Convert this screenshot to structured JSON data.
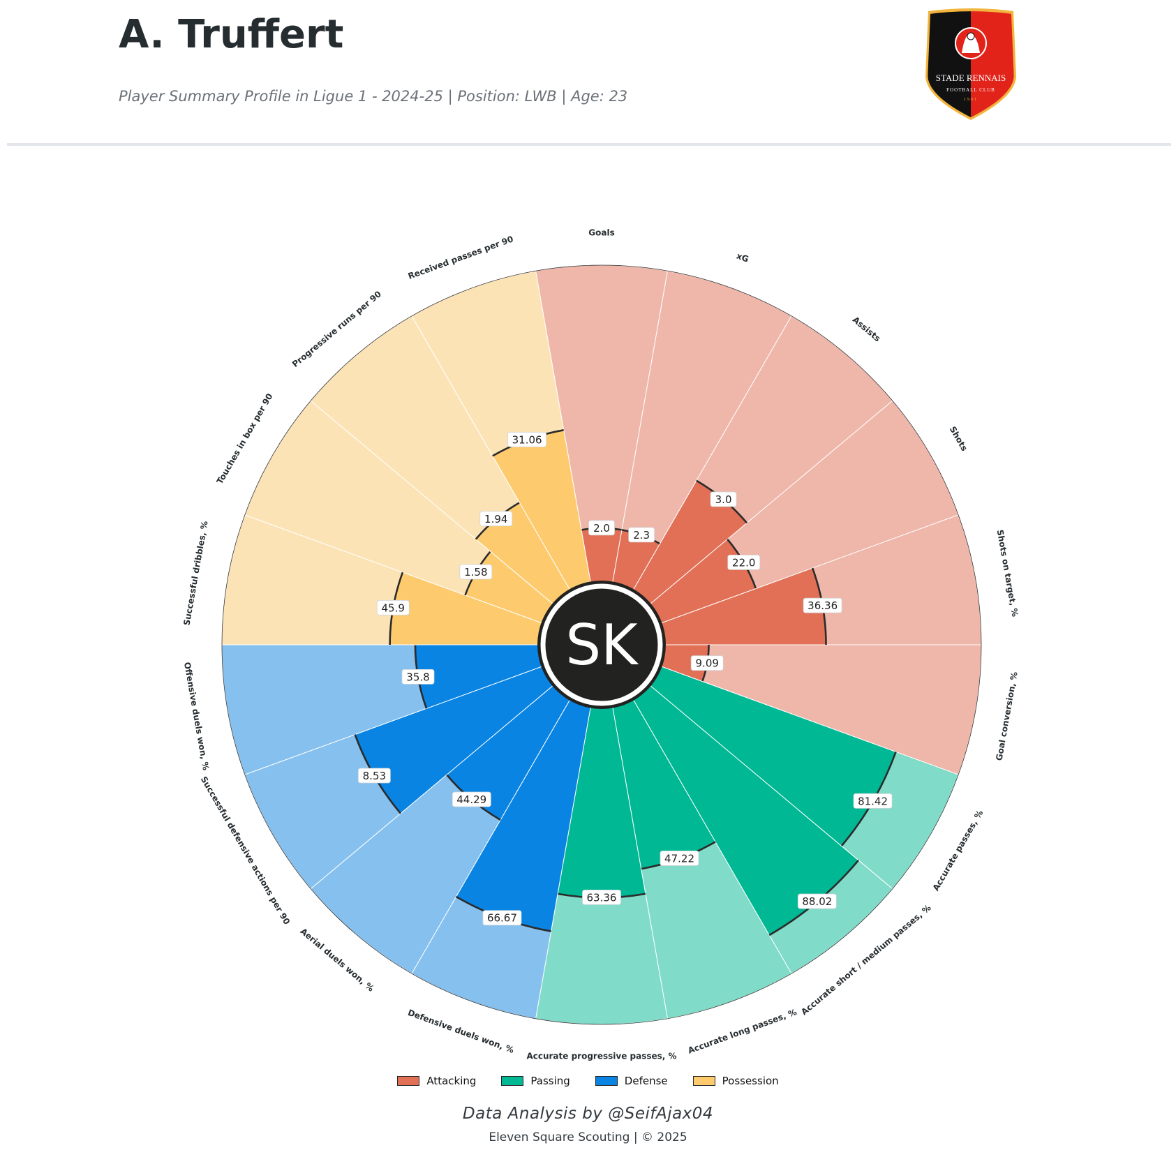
{
  "header": {
    "title": "A. Truffert",
    "subtitle": "Player Summary Profile in Ligue 1 - 2024-25 | Position: LWB | Age: 23"
  },
  "logo": {
    "name": "STADE RENNAIS",
    "sub": "FOOTBALL CLUB",
    "year": "1901",
    "colors": {
      "left": "#111111",
      "right": "#e2231a",
      "border": "#f2b43c"
    }
  },
  "center_badge": {
    "text": "SK"
  },
  "chart_data": {
    "type": "polar-bar",
    "percentile_range": [
      0,
      100
    ],
    "categories_colors": {
      "Attacking": {
        "fill": "#e27056",
        "bg": "#efb6aa"
      },
      "Passing": {
        "fill": "#00b894",
        "bg": "#80dbc8"
      },
      "Defense": {
        "fill": "#0984e3",
        "bg": "#85c0ee"
      },
      "Possession": {
        "fill": "#fdcb6e",
        "bg": "#fce3b6"
      }
    },
    "metrics": [
      {
        "label": "Goals",
        "value": "2.0",
        "category": "Attacking",
        "percentile": 17
      },
      {
        "label": "xG",
        "value": "2.3",
        "category": "Attacking",
        "percentile": 17
      },
      {
        "label": "Assists",
        "value": "3.0",
        "category": "Attacking",
        "percentile": 40
      },
      {
        "label": "Shots",
        "value": "22.0",
        "category": "Attacking",
        "percentile": 32
      },
      {
        "label": "Shots on target, %",
        "value": "36.36",
        "category": "Attacking",
        "percentile": 51
      },
      {
        "label": "Goal conversion, %",
        "value": "9.09",
        "category": "Attacking",
        "percentile": 14
      },
      {
        "label": "Accurate passes, %",
        "value": "81.42",
        "category": "Passing",
        "percentile": 79
      },
      {
        "label": "Accurate short / medium passes, %",
        "value": "88.02",
        "category": "Passing",
        "percentile": 86
      },
      {
        "label": "Accurate long passes, %",
        "value": "47.22",
        "category": "Passing",
        "percentile": 52
      },
      {
        "label": "Accurate progressive passes, %",
        "value": "63.36",
        "category": "Passing",
        "percentile": 60
      },
      {
        "label": "Defensive duels won, %",
        "value": "66.67",
        "category": "Defense",
        "percentile": 72
      },
      {
        "label": "Aerial duels won, %",
        "value": "44.29",
        "category": "Defense",
        "percentile": 44
      },
      {
        "label": "Successful defensive actions per 90",
        "value": "8.53",
        "category": "Defense",
        "percentile": 63
      },
      {
        "label": "Offensive duels won, %",
        "value": "35.8",
        "category": "Defense",
        "percentile": 39
      },
      {
        "label": "Successful dribbles, %",
        "value": "45.9",
        "category": "Possession",
        "percentile": 47
      },
      {
        "label": "Touches in box per 90",
        "value": "1.58",
        "category": "Possession",
        "percentile": 26
      },
      {
        "label": "Progressive runs per 90",
        "value": "1.94",
        "category": "Possession",
        "percentile": 32
      },
      {
        "label": "Received passes per 90",
        "value": "31.06",
        "category": "Possession",
        "percentile": 49
      }
    ],
    "legend": [
      "Attacking",
      "Passing",
      "Defense",
      "Possession"
    ],
    "legend_position": "bottom-center",
    "grid": false
  },
  "footer": {
    "credit": "Data Analysis by @SeifAjax04",
    "copyright": "Eleven Square Scouting | © 2025"
  }
}
